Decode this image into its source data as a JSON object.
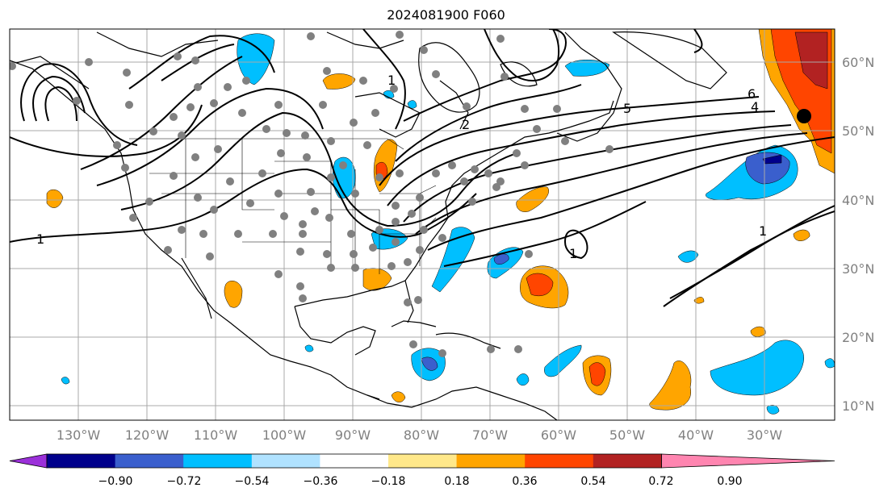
{
  "title": "2024081900 F060",
  "map": {
    "projection": "PlateCarree",
    "lon_labels": [
      "130°W",
      "120°W",
      "110°W",
      "100°W",
      "90°W",
      "80°W",
      "70°W",
      "60°W",
      "50°W",
      "40°W",
      "30°W"
    ],
    "lat_labels": [
      "60°N",
      "50°N",
      "40°N",
      "30°N",
      "20°N",
      "10°N"
    ],
    "gridlines": true
  },
  "colorbar": {
    "ticks": [
      "−0.90",
      "−0.72",
      "−0.54",
      "−0.36",
      "−0.18",
      "0.18",
      "0.36",
      "0.54",
      "0.72",
      "0.90"
    ],
    "colors": [
      "#9b30d9",
      "#00008b",
      "#3a5fcd",
      "#00bfff",
      "#b0e2ff",
      "#ffffff",
      "#ffe88a",
      "#ffa500",
      "#ff4500",
      "#b22222",
      "#ff85b0"
    ],
    "extend": "both"
  },
  "contour_labels": [
    "1",
    "2",
    "5",
    "6",
    "4",
    "1",
    "1",
    "1"
  ],
  "station_marker_color": "#808080",
  "highlight_marker_color": "#000000"
}
